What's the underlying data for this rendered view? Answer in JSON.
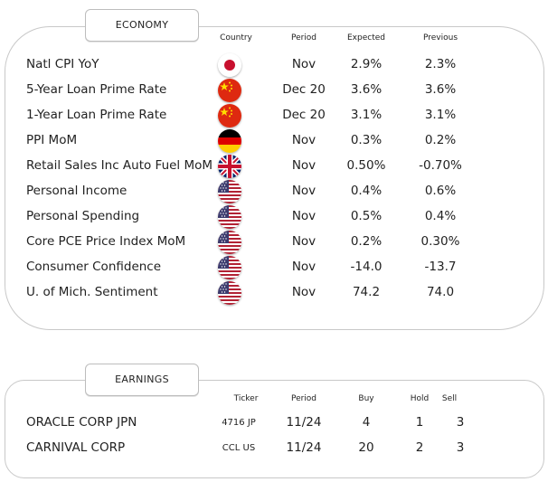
{
  "economy": {
    "tab_label": "ECONOMY",
    "columns": {
      "country": "Country",
      "period": "Period",
      "expected": "Expected",
      "previous": "Previous"
    },
    "events": [
      {
        "name": "Natl CPI YoY",
        "flag": "japan-flag-icon",
        "period": "Nov",
        "expected": "2.9%",
        "previous": "2.3%"
      },
      {
        "name": "5-Year Loan Prime Rate",
        "flag": "china-flag-icon",
        "period": "Dec 20",
        "expected": "3.6%",
        "previous": "3.6%"
      },
      {
        "name": "1-Year Loan Prime Rate",
        "flag": "china-flag-icon",
        "period": "Dec 20",
        "expected": "3.1%",
        "previous": "3.1%"
      },
      {
        "name": "PPI MoM",
        "flag": "germany-flag-icon",
        "period": "Nov",
        "expected": "0.3%",
        "previous": "0.2%"
      },
      {
        "name": "Retail Sales Inc Auto Fuel MoM",
        "flag": "uk-flag-icon",
        "period": "Nov",
        "expected": "0.50%",
        "previous": "-0.70%"
      },
      {
        "name": "Personal Income",
        "flag": "us-flag-icon",
        "period": "Nov",
        "expected": "0.4%",
        "previous": "0.6%"
      },
      {
        "name": "Personal Spending",
        "flag": "us-flag-icon",
        "period": "Nov",
        "expected": "0.5%",
        "previous": "0.4%"
      },
      {
        "name": "Core PCE Price Index MoM",
        "flag": "us-flag-icon",
        "period": "Nov",
        "expected": "0.2%",
        "previous": "0.30%"
      },
      {
        "name": "Consumer Confidence",
        "flag": "us-flag-icon",
        "period": "Nov",
        "expected": "-14.0",
        "previous": "-13.7"
      },
      {
        "name": "U. of Mich. Sentiment",
        "flag": "us-flag-icon",
        "period": "Nov",
        "expected": "74.2",
        "previous": "74.0"
      }
    ]
  },
  "earnings": {
    "tab_label": "EARNINGS",
    "columns": {
      "ticker": "Ticker",
      "period": "Period",
      "buy": "Buy",
      "hold": "Hold",
      "sell": "Sell"
    },
    "rows": [
      {
        "company": "ORACLE CORP JPN",
        "ticker": "4716 JP",
        "period": "11/24",
        "buy": "4",
        "hold": "1",
        "sell": "3"
      },
      {
        "company": "CARNIVAL CORP",
        "ticker": "CCL US",
        "period": "11/24",
        "buy": "20",
        "hold": "2",
        "sell": "3"
      }
    ]
  },
  "colors": {
    "japan_red": "#c8102e",
    "china_red": "#de2910",
    "china_yellow": "#ffde00",
    "germany_red": "#dd0000",
    "germany_gold": "#ffce00",
    "uk_blue": "#012169",
    "uk_red": "#c8102e",
    "us_blue": "#3c3b6e",
    "us_red": "#b22234"
  }
}
